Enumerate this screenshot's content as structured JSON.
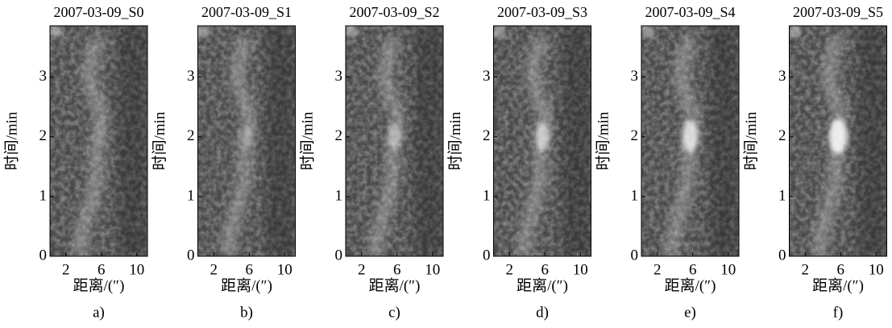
{
  "chart_data": [
    {
      "type": "image",
      "title": "2007-03-09_S0",
      "xlabel": "距离/(″)",
      "ylabel": "时间/min",
      "label": "a)",
      "xlim": [
        0.2,
        11.2
      ],
      "ylim": [
        0,
        3.86
      ],
      "xticks": [
        2,
        6,
        10
      ],
      "yticks": [
        0,
        1,
        2,
        3
      ]
    },
    {
      "type": "image",
      "title": "2007-03-09_S1",
      "xlabel": "距离/(″)",
      "ylabel": "时间/min",
      "label": "b)",
      "xlim": [
        0.2,
        11.2
      ],
      "ylim": [
        0,
        3.86
      ],
      "xticks": [
        2,
        6,
        10
      ],
      "yticks": [
        0,
        1,
        2,
        3
      ]
    },
    {
      "type": "image",
      "title": "2007-03-09_S2",
      "xlabel": "距离/(″)",
      "ylabel": "时间/min",
      "label": "c)",
      "xlim": [
        0.2,
        11.2
      ],
      "ylim": [
        0,
        3.86
      ],
      "xticks": [
        2,
        6,
        10
      ],
      "yticks": [
        0,
        1,
        2,
        3
      ]
    },
    {
      "type": "image",
      "title": "2007-03-09_S3",
      "xlabel": "距离/(″)",
      "ylabel": "时间/min",
      "label": "d)",
      "xlim": [
        0.2,
        11.2
      ],
      "ylim": [
        0,
        3.86
      ],
      "xticks": [
        2,
        6,
        10
      ],
      "yticks": [
        0,
        1,
        2,
        3
      ]
    },
    {
      "type": "image",
      "title": "2007-03-09_S4",
      "xlabel": "距离/(″)",
      "ylabel": "时间/min",
      "label": "e)",
      "xlim": [
        0.2,
        11.2
      ],
      "ylim": [
        0,
        3.86
      ],
      "xticks": [
        2,
        6,
        10
      ],
      "yticks": [
        0,
        1,
        2,
        3
      ]
    },
    {
      "type": "image",
      "title": "2007-03-09_S5",
      "xlabel": "距离/(″)",
      "ylabel": "时间/min",
      "label": "f)",
      "xlim": [
        0.2,
        11.2
      ],
      "ylim": [
        0,
        3.86
      ],
      "xticks": [
        2,
        6,
        10
      ],
      "yticks": [
        0,
        1,
        2,
        3
      ]
    }
  ]
}
